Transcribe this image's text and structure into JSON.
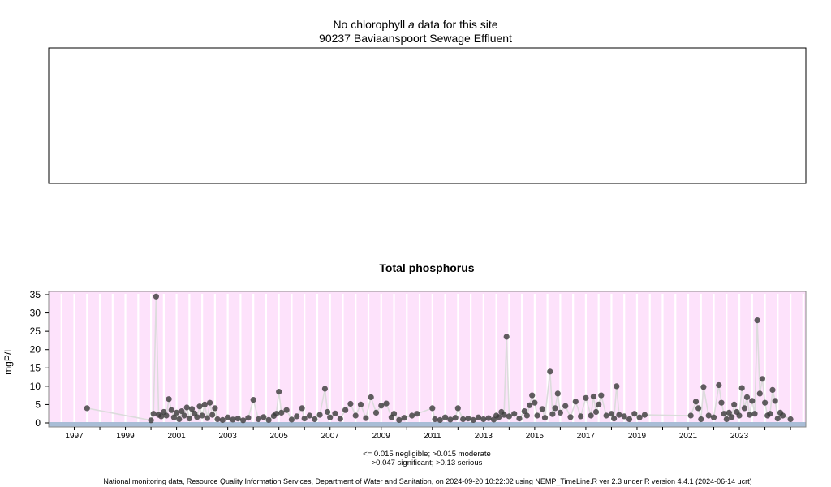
{
  "top_panel": {
    "title_prefix": "No chlorophyll",
    "title_italic": "a",
    "title_suffix": "data for this site",
    "subtitle": "90237 Baviaanspoort Sewage Effluent"
  },
  "footer": {
    "legend_line1": "<= 0.015 negligible; >0.015 moderate",
    "legend_line2": ">0.047 significant; >0.13 serious",
    "credit": "National monitoring data, Resource Quality Information Services, Department of Water and Sanitation, on 2024-09-20 10:22:02 using NEMP_TimeLine.R ver 2.3 under R version 4.4.1 (2024-06-14 ucrt)"
  },
  "colors": {
    "plot_background": "#fde2fb",
    "band": "#a9bdd6",
    "point": "#3a3a3a",
    "line": "#dcdcdc",
    "grid": "#ffffff"
  },
  "chart_data": {
    "type": "scatter",
    "title": "Total phosphorus",
    "xlabel": "",
    "ylabel": "mgP/L",
    "xlim": [
      1996.0,
      2025.6
    ],
    "ylim": [
      -1,
      36
    ],
    "x_tick_labels": [
      "1997",
      "1999",
      "2001",
      "2003",
      "2005",
      "2007",
      "2009",
      "2011",
      "2013",
      "2015",
      "2017",
      "2019",
      "2021",
      "2023"
    ],
    "y_tick_labels": [
      "0",
      "5",
      "10",
      "15",
      "20",
      "25",
      "30",
      "35"
    ],
    "series": [
      {
        "points": [
          [
            1997.5,
            4.0
          ],
          [
            2000.0,
            0.7
          ],
          [
            2000.1,
            2.5
          ],
          [
            2000.2,
            34.5
          ],
          [
            2000.3,
            2.2
          ],
          [
            2000.4,
            1.8
          ],
          [
            2000.5,
            3.0
          ],
          [
            2000.6,
            2.0
          ],
          [
            2000.7,
            6.5
          ],
          [
            2000.8,
            3.5
          ],
          [
            2000.9,
            1.5
          ],
          [
            2001.0,
            2.8
          ],
          [
            2001.1,
            1.0
          ],
          [
            2001.2,
            3.2
          ],
          [
            2001.3,
            2.0
          ],
          [
            2001.4,
            4.2
          ],
          [
            2001.5,
            1.2
          ],
          [
            2001.6,
            3.8
          ],
          [
            2001.7,
            2.6
          ],
          [
            2001.8,
            1.6
          ],
          [
            2001.9,
            4.5
          ],
          [
            2002.0,
            2.0
          ],
          [
            2002.1,
            5.0
          ],
          [
            2002.2,
            1.3
          ],
          [
            2002.3,
            5.5
          ],
          [
            2002.4,
            2.2
          ],
          [
            2002.5,
            4.0
          ],
          [
            2002.6,
            1.0
          ],
          [
            2002.8,
            0.8
          ],
          [
            2003.0,
            1.5
          ],
          [
            2003.2,
            0.9
          ],
          [
            2003.4,
            1.2
          ],
          [
            2003.6,
            0.7
          ],
          [
            2003.8,
            1.4
          ],
          [
            2004.0,
            6.3
          ],
          [
            2004.2,
            1.0
          ],
          [
            2004.4,
            1.6
          ],
          [
            2004.6,
            0.8
          ],
          [
            2004.8,
            1.9
          ],
          [
            2004.9,
            2.5
          ],
          [
            2005.0,
            8.5
          ],
          [
            2005.1,
            2.8
          ],
          [
            2005.3,
            3.5
          ],
          [
            2005.5,
            0.9
          ],
          [
            2005.7,
            1.8
          ],
          [
            2005.9,
            4.0
          ],
          [
            2006.0,
            1.2
          ],
          [
            2006.2,
            2.0
          ],
          [
            2006.4,
            1.0
          ],
          [
            2006.6,
            2.2
          ],
          [
            2006.8,
            9.3
          ],
          [
            2006.9,
            3.0
          ],
          [
            2007.0,
            1.5
          ],
          [
            2007.2,
            2.6
          ],
          [
            2007.4,
            1.1
          ],
          [
            2007.6,
            3.5
          ],
          [
            2007.8,
            5.2
          ],
          [
            2008.0,
            2.0
          ],
          [
            2008.2,
            5.0
          ],
          [
            2008.4,
            1.3
          ],
          [
            2008.6,
            7.0
          ],
          [
            2008.8,
            2.8
          ],
          [
            2009.0,
            4.7
          ],
          [
            2009.2,
            5.3
          ],
          [
            2009.4,
            1.5
          ],
          [
            2009.5,
            2.5
          ],
          [
            2009.7,
            0.8
          ],
          [
            2009.9,
            1.4
          ],
          [
            2010.2,
            2.0
          ],
          [
            2010.4,
            2.5
          ],
          [
            2011.0,
            4.0
          ],
          [
            2011.1,
            1.0
          ],
          [
            2011.3,
            0.8
          ],
          [
            2011.5,
            1.5
          ],
          [
            2011.7,
            0.9
          ],
          [
            2011.9,
            1.4
          ],
          [
            2012.0,
            4.0
          ],
          [
            2012.2,
            1.0
          ],
          [
            2012.4,
            1.2
          ],
          [
            2012.6,
            0.8
          ],
          [
            2012.8,
            1.5
          ],
          [
            2013.0,
            1.0
          ],
          [
            2013.2,
            1.3
          ],
          [
            2013.4,
            0.9
          ],
          [
            2013.5,
            2.0
          ],
          [
            2013.6,
            1.6
          ],
          [
            2013.7,
            3.0
          ],
          [
            2013.8,
            2.2
          ],
          [
            2013.9,
            23.5
          ],
          [
            2014.0,
            1.8
          ],
          [
            2014.2,
            2.5
          ],
          [
            2014.4,
            1.2
          ],
          [
            2014.6,
            3.2
          ],
          [
            2014.7,
            2.0
          ],
          [
            2014.8,
            4.8
          ],
          [
            2014.9,
            7.5
          ],
          [
            2015.0,
            5.5
          ],
          [
            2015.1,
            2.0
          ],
          [
            2015.3,
            3.8
          ],
          [
            2015.4,
            1.4
          ],
          [
            2015.6,
            14.0
          ],
          [
            2015.7,
            2.4
          ],
          [
            2015.8,
            4.0
          ],
          [
            2015.9,
            8.0
          ],
          [
            2016.0,
            2.8
          ],
          [
            2016.2,
            4.6
          ],
          [
            2016.4,
            1.6
          ],
          [
            2016.6,
            5.8
          ],
          [
            2016.8,
            1.8
          ],
          [
            2017.0,
            6.8
          ],
          [
            2017.2,
            2.0
          ],
          [
            2017.3,
            7.2
          ],
          [
            2017.4,
            3.0
          ],
          [
            2017.5,
            5.0
          ],
          [
            2017.6,
            7.5
          ],
          [
            2017.8,
            2.0
          ],
          [
            2018.0,
            2.5
          ],
          [
            2018.1,
            1.2
          ],
          [
            2018.2,
            10.0
          ],
          [
            2018.3,
            2.2
          ],
          [
            2018.5,
            1.8
          ],
          [
            2018.7,
            1.0
          ],
          [
            2018.9,
            2.5
          ],
          [
            2019.1,
            1.5
          ],
          [
            2019.3,
            2.2
          ],
          [
            2021.1,
            2.0
          ],
          [
            2021.3,
            5.8
          ],
          [
            2021.4,
            4.0
          ],
          [
            2021.5,
            1.0
          ],
          [
            2021.6,
            9.8
          ],
          [
            2021.8,
            2.0
          ],
          [
            2022.0,
            1.5
          ],
          [
            2022.2,
            10.3
          ],
          [
            2022.3,
            5.5
          ],
          [
            2022.4,
            2.5
          ],
          [
            2022.5,
            1.0
          ],
          [
            2022.6,
            2.8
          ],
          [
            2022.7,
            1.6
          ],
          [
            2022.8,
            5.0
          ],
          [
            2022.9,
            3.0
          ],
          [
            2023.0,
            2.0
          ],
          [
            2023.1,
            9.5
          ],
          [
            2023.2,
            4.0
          ],
          [
            2023.3,
            7.0
          ],
          [
            2023.4,
            2.2
          ],
          [
            2023.5,
            6.0
          ],
          [
            2023.6,
            2.5
          ],
          [
            2023.7,
            28.0
          ],
          [
            2023.8,
            8.0
          ],
          [
            2023.9,
            12.0
          ],
          [
            2024.0,
            5.5
          ],
          [
            2024.1,
            2.0
          ],
          [
            2024.2,
            2.5
          ],
          [
            2024.3,
            9.0
          ],
          [
            2024.4,
            6.0
          ],
          [
            2024.5,
            1.2
          ],
          [
            2024.6,
            2.8
          ],
          [
            2024.7,
            2.0
          ],
          [
            2025.0,
            1.0
          ]
        ]
      }
    ],
    "grid": true
  }
}
